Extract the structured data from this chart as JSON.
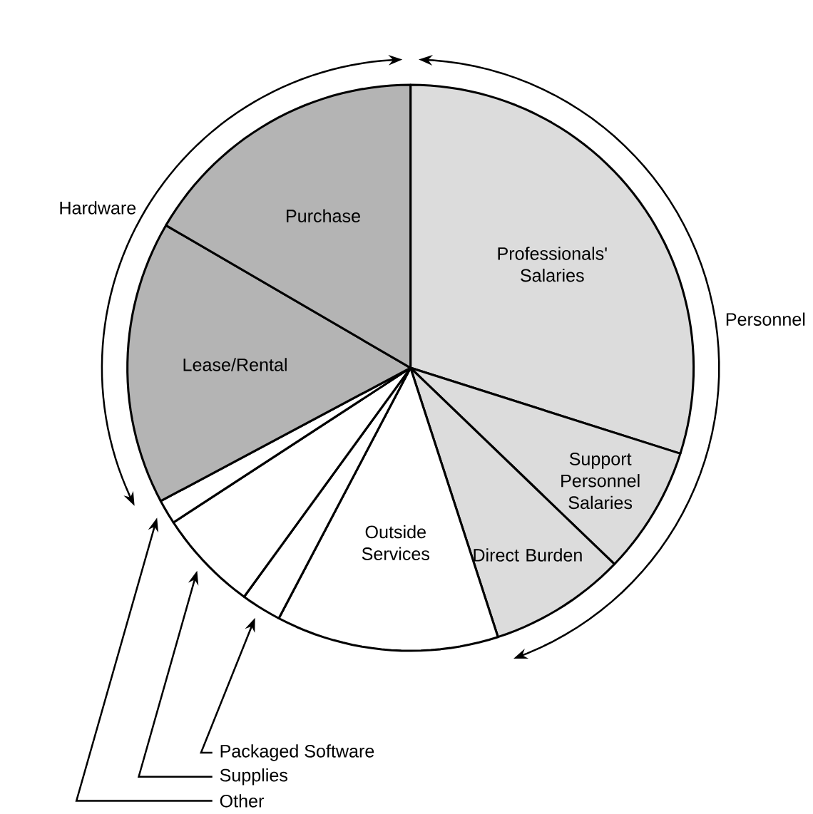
{
  "chart_data": {
    "type": "pie",
    "categories": [
      "Professionals' Salaries",
      "Support Personnel Salaries",
      "Direct Burden",
      "Outside Services",
      "Packaged Software",
      "Supplies",
      "Other",
      "Lease/Rental",
      "Purchase"
    ],
    "values": [
      29.9,
      7.3,
      7.8,
      12.7,
      2.3,
      5.8,
      1.4,
      16.2,
      16.6
    ],
    "colors": [
      "#dcdcdc",
      "#dcdcdc",
      "#dcdcdc",
      "#ffffff",
      "#ffffff",
      "#ffffff",
      "#ffffff",
      "#b4b4b4",
      "#b4b4b4"
    ],
    "annotations": [
      "Hardware",
      "Personnel"
    ]
  }
}
